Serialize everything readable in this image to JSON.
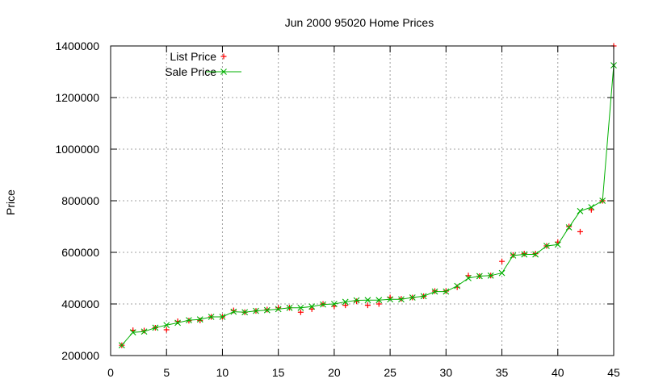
{
  "chart_data": {
    "type": "scatter",
    "title": "Jun 2000 95020 Home Prices",
    "xlabel": "",
    "ylabel": "Price",
    "xlim": [
      0,
      45
    ],
    "ylim": [
      200000,
      1400000
    ],
    "xticks": [
      0,
      5,
      10,
      15,
      20,
      25,
      30,
      35,
      40,
      45
    ],
    "yticks": [
      200000,
      400000,
      600000,
      800000,
      1000000,
      1200000,
      1400000
    ],
    "grid": true,
    "legend_position": "top-left",
    "series": [
      {
        "name": "List Price",
        "style": "points",
        "marker": "plus",
        "color": "#ff0000",
        "x": [
          1,
          2,
          3,
          4,
          5,
          6,
          7,
          8,
          9,
          10,
          11,
          12,
          13,
          14,
          15,
          16,
          17,
          18,
          19,
          20,
          21,
          22,
          23,
          24,
          25,
          26,
          27,
          28,
          29,
          30,
          31,
          32,
          33,
          34,
          35,
          36,
          37,
          38,
          39,
          40,
          41,
          42,
          43,
          44,
          45
        ],
        "y": [
          240000,
          298000,
          297000,
          308000,
          300000,
          333000,
          335000,
          336000,
          350000,
          350000,
          375000,
          368000,
          373000,
          378000,
          385000,
          385000,
          368000,
          380000,
          400000,
          391000,
          395000,
          410000,
          395000,
          400000,
          425000,
          420000,
          425000,
          430000,
          450000,
          450000,
          465000,
          510000,
          508000,
          510000,
          565000,
          590000,
          595000,
          595000,
          625000,
          640000,
          700000,
          680000,
          765000,
          800000,
          1400000
        ]
      },
      {
        "name": "Sale Price",
        "style": "linespoints",
        "marker": "cross",
        "color": "#00b000",
        "x": [
          1,
          2,
          3,
          4,
          5,
          6,
          7,
          8,
          9,
          10,
          11,
          12,
          13,
          14,
          15,
          16,
          17,
          18,
          19,
          20,
          21,
          22,
          23,
          24,
          25,
          26,
          27,
          28,
          29,
          30,
          31,
          32,
          33,
          34,
          35,
          36,
          37,
          38,
          39,
          40,
          41,
          42,
          43,
          44,
          45
        ],
        "y": [
          240000,
          290000,
          293000,
          308000,
          318000,
          327000,
          337000,
          340000,
          350000,
          350000,
          370000,
          368000,
          373000,
          376000,
          380000,
          385000,
          385000,
          390000,
          398000,
          400000,
          408000,
          414000,
          415000,
          415000,
          418000,
          418000,
          425000,
          430000,
          448000,
          448000,
          470000,
          500000,
          508000,
          510000,
          520000,
          588000,
          592000,
          592000,
          625000,
          630000,
          697000,
          760000,
          775000,
          800000,
          1325000
        ]
      }
    ]
  },
  "colors": {
    "grid": "#a0a0a0",
    "axis": "#000000"
  }
}
